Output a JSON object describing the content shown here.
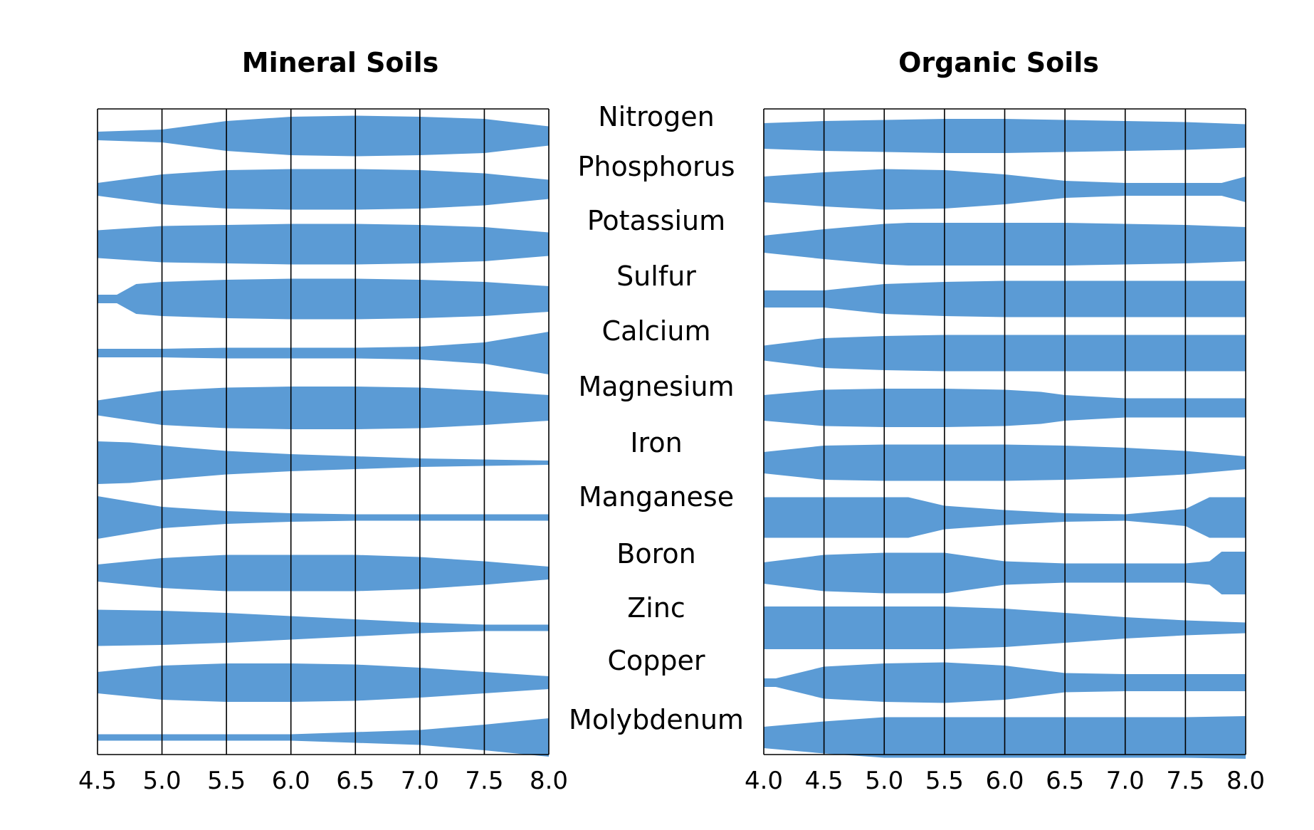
{
  "chart_data": [
    {
      "type": "area",
      "title": "Mineral Soils",
      "xlabel": "",
      "ylabel": "",
      "xlim": [
        4.5,
        8.0
      ],
      "x_ticks": [
        "4.5",
        "5.0",
        "5.5",
        "6.0",
        "6.5",
        "7.0",
        "7.5",
        "8.0"
      ],
      "grid": true,
      "color": "#5B9BD5",
      "categories": [
        "Nitrogen",
        "Phosphorus",
        "Potassium",
        "Sulfur",
        "Calcium",
        "Magnesium",
        "Iron",
        "Manganese",
        "Boron",
        "Zinc",
        "Copper",
        "Molybdenum"
      ],
      "series": [
        {
          "x": [
            4.5,
            5.0,
            5.5,
            6.0,
            6.5,
            7.0,
            7.5,
            8.0
          ],
          "width": [
            0.2,
            0.3,
            0.7,
            0.9,
            0.95,
            0.9,
            0.8,
            0.45
          ]
        },
        {
          "x": [
            4.5,
            5.0,
            5.5,
            6.0,
            6.5,
            7.0,
            7.5,
            8.0
          ],
          "width": [
            0.3,
            0.7,
            0.9,
            0.95,
            0.95,
            0.9,
            0.75,
            0.45
          ]
        },
        {
          "x": [
            4.5,
            5.0,
            5.5,
            6.0,
            6.5,
            7.0,
            7.5,
            8.0
          ],
          "width": [
            0.65,
            0.85,
            0.9,
            0.95,
            0.95,
            0.9,
            0.8,
            0.55
          ]
        },
        {
          "x": [
            4.5,
            4.65,
            4.8,
            5.0,
            5.5,
            6.0,
            6.5,
            7.0,
            7.5,
            8.0
          ],
          "width": [
            0.2,
            0.2,
            0.7,
            0.8,
            0.9,
            0.95,
            0.95,
            0.9,
            0.8,
            0.6
          ]
        },
        {
          "x": [
            4.5,
            5.0,
            5.5,
            6.0,
            6.5,
            7.0,
            7.5,
            7.8,
            8.0
          ],
          "width": [
            0.2,
            0.2,
            0.25,
            0.25,
            0.25,
            0.3,
            0.5,
            0.8,
            1.0
          ]
        },
        {
          "x": [
            4.5,
            5.0,
            5.5,
            6.0,
            6.5,
            7.0,
            7.5,
            8.0
          ],
          "width": [
            0.35,
            0.8,
            0.95,
            1.0,
            1.0,
            0.95,
            0.8,
            0.6
          ]
        },
        {
          "x": [
            4.5,
            4.75,
            5.0,
            5.5,
            6.0,
            6.5,
            7.0,
            7.5,
            8.0
          ],
          "width": [
            1.0,
            0.95,
            0.8,
            0.55,
            0.4,
            0.3,
            0.2,
            0.15,
            0.1
          ]
        },
        {
          "x": [
            4.5,
            4.75,
            5.0,
            5.5,
            6.0,
            6.5,
            7.0,
            7.5,
            8.0
          ],
          "width": [
            1.0,
            0.75,
            0.5,
            0.3,
            0.2,
            0.15,
            0.15,
            0.15,
            0.15
          ]
        },
        {
          "x": [
            4.5,
            5.0,
            5.5,
            6.0,
            6.5,
            7.0,
            7.5,
            8.0
          ],
          "width": [
            0.4,
            0.7,
            0.85,
            0.85,
            0.85,
            0.75,
            0.55,
            0.3
          ]
        },
        {
          "x": [
            4.5,
            5.0,
            5.5,
            6.0,
            6.5,
            7.0,
            7.5,
            8.0
          ],
          "width": [
            0.85,
            0.8,
            0.7,
            0.55,
            0.4,
            0.25,
            0.15,
            0.15
          ]
        },
        {
          "x": [
            4.5,
            5.0,
            5.5,
            6.0,
            6.5,
            7.0,
            7.5,
            8.0
          ],
          "width": [
            0.5,
            0.8,
            0.9,
            0.9,
            0.85,
            0.7,
            0.5,
            0.3
          ]
        },
        {
          "x": [
            4.5,
            5.0,
            5.5,
            6.0,
            6.5,
            7.0,
            7.5,
            8.0
          ],
          "width": [
            0.15,
            0.15,
            0.15,
            0.15,
            0.25,
            0.35,
            0.6,
            0.9
          ]
        }
      ]
    },
    {
      "type": "area",
      "title": "Organic Soils",
      "xlabel": "",
      "ylabel": "",
      "xlim": [
        4.0,
        8.0
      ],
      "x_ticks": [
        "4.0",
        "4.5",
        "5.0",
        "5.5",
        "6.0",
        "6.5",
        "7.0",
        "7.5",
        "8.0"
      ],
      "grid": true,
      "color": "#5B9BD5",
      "categories": [
        "Nitrogen",
        "Phosphorus",
        "Potassium",
        "Sulfur",
        "Calcium",
        "Magnesium",
        "Iron",
        "Manganese",
        "Boron",
        "Zinc",
        "Copper",
        "Molybdenum"
      ],
      "series": [
        {
          "x": [
            4.0,
            4.5,
            5.0,
            5.5,
            6.0,
            6.5,
            7.0,
            7.5,
            8.0
          ],
          "width": [
            0.6,
            0.7,
            0.75,
            0.8,
            0.8,
            0.75,
            0.7,
            0.65,
            0.55
          ]
        },
        {
          "x": [
            4.0,
            4.5,
            5.0,
            5.5,
            6.0,
            6.5,
            7.0,
            7.5,
            7.8,
            8.0
          ],
          "width": [
            0.6,
            0.8,
            0.95,
            0.9,
            0.7,
            0.4,
            0.3,
            0.3,
            0.3,
            0.6
          ]
        },
        {
          "x": [
            4.0,
            4.5,
            5.0,
            5.2,
            5.5,
            6.0,
            6.5,
            7.0,
            7.5,
            8.0
          ],
          "width": [
            0.4,
            0.7,
            0.95,
            1.0,
            1.0,
            1.0,
            1.0,
            0.95,
            0.9,
            0.8
          ]
        },
        {
          "x": [
            4.0,
            4.5,
            5.0,
            5.5,
            6.0,
            6.5,
            7.0,
            7.5,
            8.0
          ],
          "width": [
            0.4,
            0.4,
            0.7,
            0.8,
            0.85,
            0.85,
            0.85,
            0.85,
            0.85
          ]
        },
        {
          "x": [
            4.0,
            4.5,
            5.0,
            5.5,
            6.0,
            6.5,
            7.0,
            7.5,
            8.0
          ],
          "width": [
            0.35,
            0.7,
            0.8,
            0.85,
            0.85,
            0.85,
            0.85,
            0.85,
            0.85
          ]
        },
        {
          "x": [
            4.0,
            4.5,
            5.0,
            5.5,
            6.0,
            6.3,
            6.5,
            7.0,
            7.5,
            8.0
          ],
          "width": [
            0.6,
            0.85,
            0.9,
            0.9,
            0.85,
            0.75,
            0.6,
            0.45,
            0.45,
            0.45
          ]
        },
        {
          "x": [
            4.0,
            4.5,
            5.0,
            5.5,
            6.0,
            6.5,
            7.0,
            7.5,
            8.0
          ],
          "width": [
            0.5,
            0.8,
            0.85,
            0.85,
            0.85,
            0.8,
            0.7,
            0.55,
            0.3
          ]
        },
        {
          "x": [
            4.0,
            4.5,
            5.0,
            5.2,
            5.5,
            6.0,
            6.5,
            7.0,
            7.5,
            7.7,
            8.0
          ],
          "width": [
            0.95,
            0.95,
            0.95,
            0.95,
            0.55,
            0.35,
            0.2,
            0.15,
            0.4,
            0.95,
            0.95
          ]
        },
        {
          "x": [
            4.0,
            4.5,
            5.0,
            5.5,
            6.0,
            6.5,
            7.0,
            7.5,
            7.7,
            7.8,
            8.0
          ],
          "width": [
            0.5,
            0.85,
            0.95,
            0.95,
            0.55,
            0.45,
            0.45,
            0.45,
            0.55,
            1.0,
            1.0
          ]
        },
        {
          "x": [
            4.0,
            4.5,
            5.0,
            5.5,
            6.0,
            6.5,
            7.0,
            7.5,
            8.0
          ],
          "width": [
            1.0,
            1.0,
            1.0,
            1.0,
            0.9,
            0.7,
            0.5,
            0.35,
            0.25
          ]
        },
        {
          "x": [
            4.0,
            4.1,
            4.5,
            5.0,
            5.5,
            6.0,
            6.5,
            7.0,
            7.5,
            8.0
          ],
          "width": [
            0.2,
            0.2,
            0.75,
            0.9,
            0.95,
            0.8,
            0.45,
            0.4,
            0.4,
            0.4
          ]
        },
        {
          "x": [
            4.0,
            4.5,
            5.0,
            5.5,
            6.0,
            6.5,
            7.0,
            7.5,
            8.0
          ],
          "width": [
            0.5,
            0.75,
            0.95,
            0.95,
            0.95,
            0.95,
            0.95,
            0.95,
            1.0
          ]
        }
      ]
    }
  ]
}
